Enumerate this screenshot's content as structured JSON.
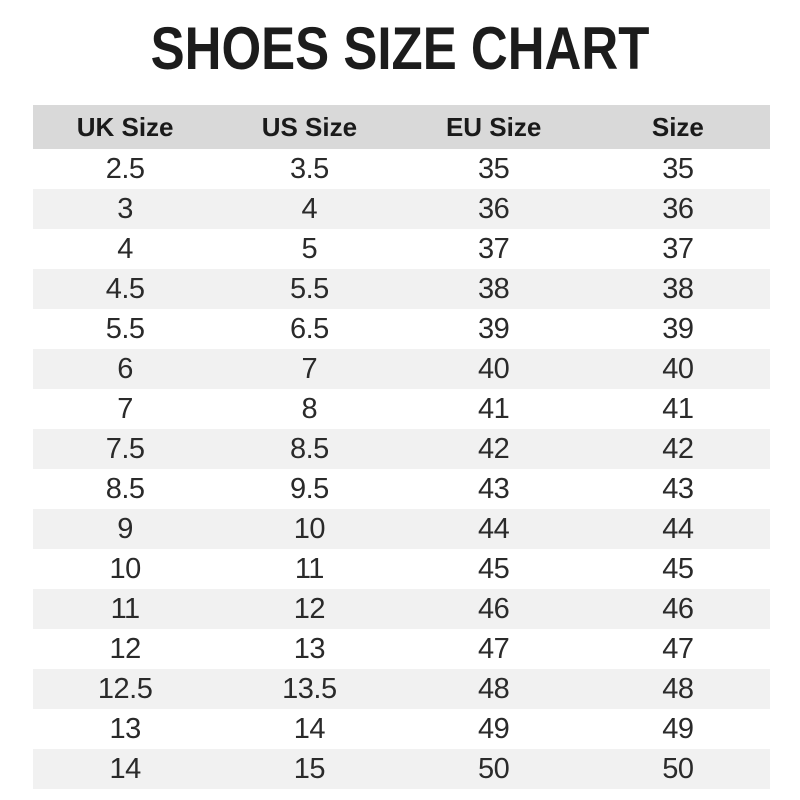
{
  "page": {
    "title": "SHOES SIZE CHART"
  },
  "chart_data": {
    "type": "table",
    "title": "SHOES SIZE CHART",
    "columns": [
      "UK Size",
      "US Size",
      "EU Size",
      "Size"
    ],
    "rows": [
      [
        "2.5",
        "3.5",
        "35",
        "35"
      ],
      [
        "3",
        "4",
        "36",
        "36"
      ],
      [
        "4",
        "5",
        "37",
        "37"
      ],
      [
        "4.5",
        "5.5",
        "38",
        "38"
      ],
      [
        "5.5",
        "6.5",
        "39",
        "39"
      ],
      [
        "6",
        "7",
        "40",
        "40"
      ],
      [
        "7",
        "8",
        "41",
        "41"
      ],
      [
        "7.5",
        "8.5",
        "42",
        "42"
      ],
      [
        "8.5",
        "9.5",
        "43",
        "43"
      ],
      [
        "9",
        "10",
        "44",
        "44"
      ],
      [
        "10",
        "11",
        "45",
        "45"
      ],
      [
        "11",
        "12",
        "46",
        "46"
      ],
      [
        "12",
        "13",
        "47",
        "47"
      ],
      [
        "12.5",
        "13.5",
        "48",
        "48"
      ],
      [
        "13",
        "14",
        "49",
        "49"
      ],
      [
        "14",
        "15",
        "50",
        "50"
      ]
    ],
    "layout": {
      "striping": "alternate-rows-starting-white",
      "column_alignment": "center",
      "grid": "none",
      "legend": "none"
    },
    "colors": {
      "header_background": "#d9d9d9",
      "stripe_background": "#f1f1f1",
      "row_background": "#ffffff",
      "title_text": "#1c1c1c",
      "cell_text": "#2a2a2a",
      "page_background": "#ffffff"
    }
  }
}
